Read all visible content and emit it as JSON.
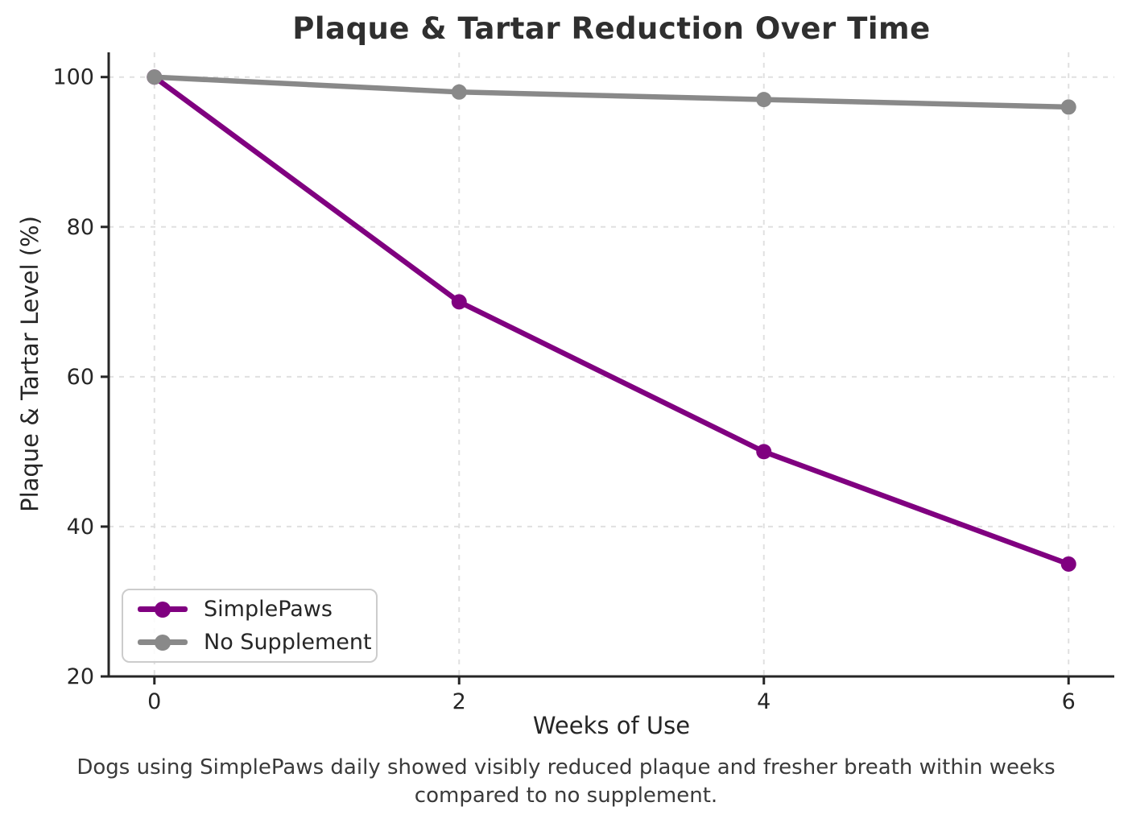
{
  "chart_data": {
    "type": "line",
    "title": "Plaque & Tartar Reduction Over Time",
    "xlabel": "Weeks of Use",
    "ylabel": "Plaque & Tartar Level (%)",
    "x": [
      0,
      2,
      4,
      6
    ],
    "series": [
      {
        "name": "SimplePaws",
        "color": "#800080",
        "values": [
          100,
          70,
          50,
          35
        ]
      },
      {
        "name": "No Supplement",
        "color": "#898989",
        "values": [
          100,
          98,
          97,
          96
        ]
      }
    ],
    "xlim": [
      -0.3,
      6.3
    ],
    "ylim": [
      20,
      103.3
    ],
    "xticks": [
      0,
      2,
      4,
      6
    ],
    "yticks": [
      20,
      40,
      60,
      80,
      100
    ],
    "grid": true,
    "legend_position": "lower left",
    "caption": "Dogs using SimplePaws daily showed visibly reduced plaque and fresher breath within weeks compared to no supplement."
  },
  "colors": {
    "background": "#ffffff",
    "text": "#262626",
    "title_text": "#2f2f2f",
    "caption_text": "#3a3a3a",
    "grid": "#e0e0e0",
    "spine": "#262626",
    "legend_border": "#cccccc",
    "simplepaws_line": "#800080",
    "no_supplement_line": "#898989"
  }
}
